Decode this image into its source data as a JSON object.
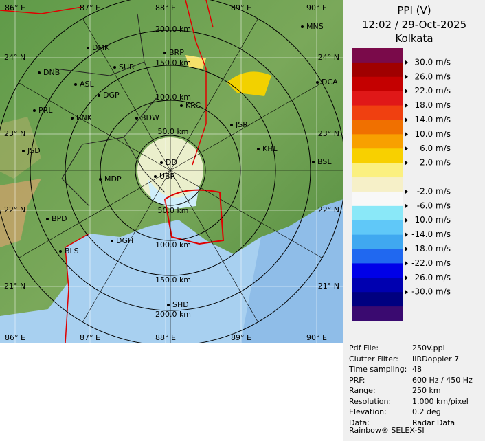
{
  "header": {
    "title": "PPI (V)",
    "datetime": "12:02 / 29-Oct-2025",
    "site": "Kolkata"
  },
  "map": {
    "lon_labels_top": [
      "86° E",
      "87° E",
      "88° E",
      "89° E",
      "90° E"
    ],
    "lon_labels_bottom": [
      "86° E",
      "87° E",
      "88° E",
      "89° E",
      "90° E"
    ],
    "lat_labels_left": [
      "24° N",
      "23° N",
      "22° N",
      "21° N"
    ],
    "lat_labels_right": [
      "24° N",
      "23° N",
      "22° N",
      "21° N"
    ],
    "range_labels_top": [
      "50.0 km",
      "100.0 km",
      "150.0 km",
      "200.0 km"
    ],
    "range_labels_bottom": [
      "50.0 km",
      "100.0 km",
      "150.0 km",
      "200.0 km"
    ],
    "places": [
      "MNS",
      "DMK",
      "BRP",
      "DNB",
      "SUR",
      "ASL",
      "DCA",
      "DGP",
      "KRC",
      "PRL",
      "BNK",
      "BDW",
      "JSR",
      "KHL",
      "JSD",
      "DD",
      "BSL",
      "MDP",
      "UBR",
      "BPD",
      "DGH",
      "BLS",
      "SHD"
    ]
  },
  "legend": {
    "labels": [
      "30.0 m/s",
      "26.0 m/s",
      "22.0 m/s",
      "18.0 m/s",
      "14.0 m/s",
      "10.0 m/s",
      " 6.0 m/s",
      " 2.0 m/s",
      "-2.0 m/s",
      "-6.0 m/s",
      "-10.0 m/s",
      "-14.0 m/s",
      "-18.0 m/s",
      "-22.0 m/s",
      "-26.0 m/s",
      "-30.0 m/s"
    ]
  },
  "info": {
    "rows": [
      [
        "Pdf File:",
        "250V.ppi"
      ],
      [
        "Clutter Filter:",
        "IIRDoppler 7"
      ],
      [
        "Time sampling:",
        "48"
      ],
      [
        "PRF:",
        "600 Hz / 450 Hz"
      ],
      [
        "Range:",
        "250 km"
      ],
      [
        "Resolution:",
        "1.000 km/pixel"
      ],
      [
        "Elevation:",
        "0.2 deg"
      ],
      [
        "Data:",
        "Radar Data"
      ]
    ]
  },
  "footer": "Rainbow® SELEX-SI"
}
